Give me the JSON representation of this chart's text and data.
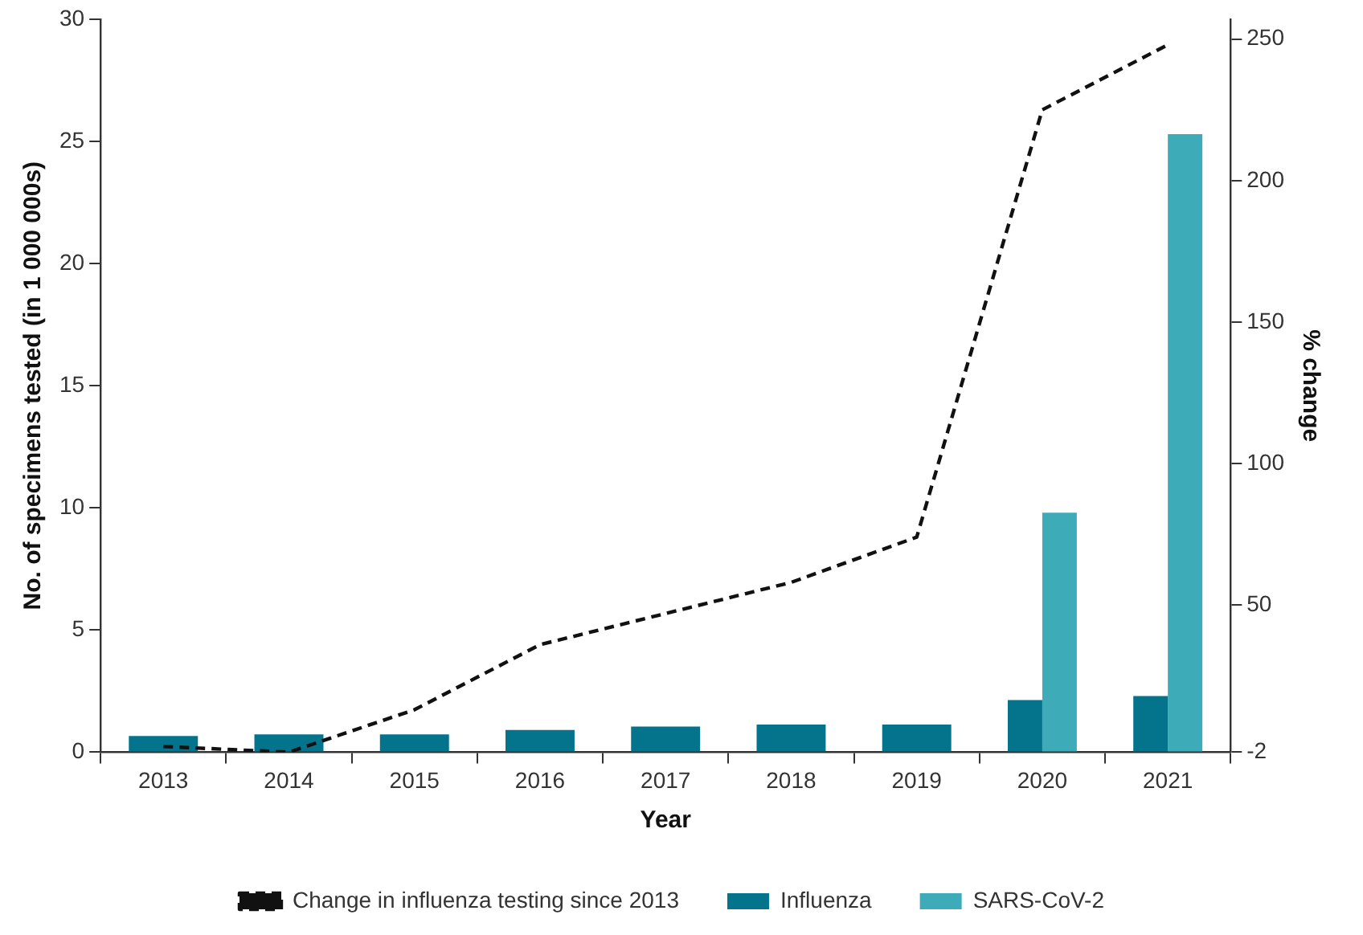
{
  "chart_data": {
    "type": "bar",
    "xlabel": "Year",
    "ylabel": "No. of specimens tested (in 1 000 000s)",
    "y2label": "% change",
    "categories": [
      "2013",
      "2014",
      "2015",
      "2016",
      "2017",
      "2018",
      "2019",
      "2020",
      "2021"
    ],
    "series": [
      {
        "name": "Influenza",
        "color": "#04748c",
        "values": [
          0.66,
          0.73,
          0.73,
          0.91,
          1.05,
          1.13,
          1.13,
          2.13,
          2.3
        ]
      },
      {
        "name": "SARS-CoV-2",
        "color": "#3eabb8",
        "values": [
          null,
          null,
          null,
          null,
          null,
          null,
          null,
          9.8,
          25.3
        ]
      },
      {
        "name": "Change in influenza testing since 2013",
        "type": "line",
        "axis": "y2",
        "color": "#111111",
        "line_style": "dashed",
        "marker": "none",
        "values": [
          0,
          -2,
          13,
          36,
          47,
          58,
          74,
          225,
          248
        ]
      }
    ],
    "ylim": [
      0,
      30
    ],
    "yticks": [
      0,
      5,
      10,
      15,
      20,
      25,
      30
    ],
    "y2lim": [
      -2,
      257
    ],
    "y2ticks": [
      -2,
      50,
      100,
      150,
      200,
      250
    ],
    "grid": false,
    "legend": "bottom"
  }
}
